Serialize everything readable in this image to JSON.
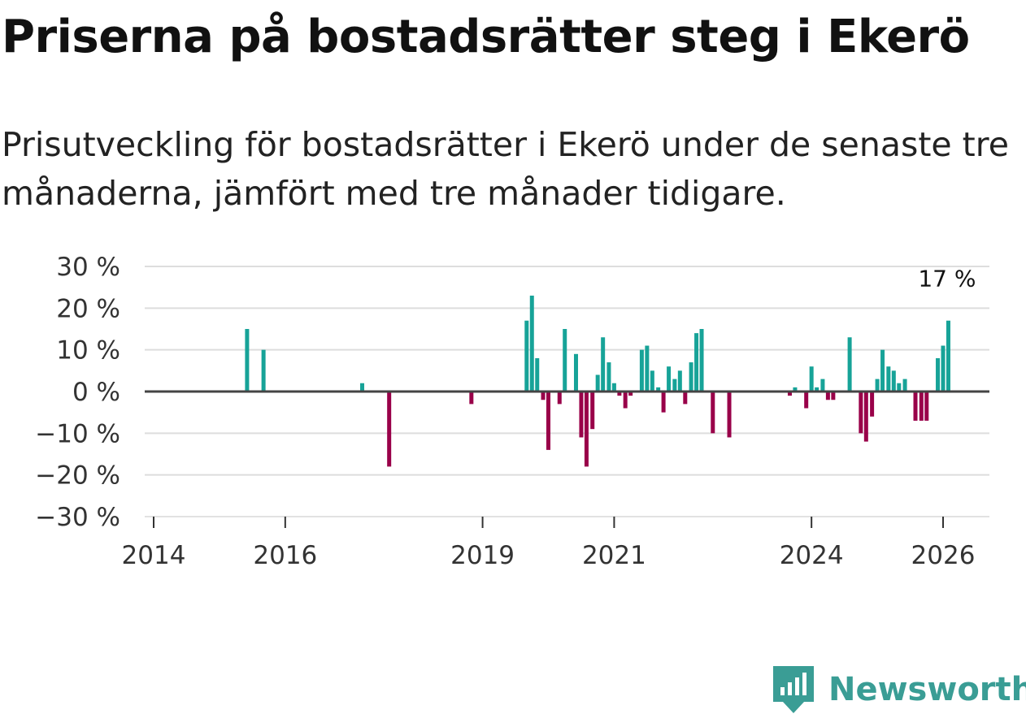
{
  "title": "Priserna på bostadsrätter steg i Ekerö",
  "subtitle": "Prisutveckling för bostadsrätter i Ekerö under de senaste tre månaderna, jämfört med tre månader tidigare.",
  "brand": "Newsworthy",
  "colors": {
    "positive": "#17a398",
    "negative": "#990049",
    "brand": "#3a9d95"
  },
  "chart_data": {
    "type": "bar",
    "title": "Priserna på bostadsrätter steg i Ekerö",
    "xlabel": "",
    "ylabel": "",
    "ylim": [
      -30,
      30
    ],
    "y_ticks": [
      30,
      20,
      10,
      0,
      -10,
      -20,
      -30
    ],
    "y_tick_labels": [
      "30 %",
      "20 %",
      "10 %",
      "0 %",
      "−10 %",
      "−20 %",
      "−30 %"
    ],
    "x_ticks": [
      2014,
      2016,
      2019,
      2021,
      2024,
      2026
    ],
    "x_tick_labels": [
      "2014",
      "2016",
      "2019",
      "2021",
      "2024",
      "2026"
    ],
    "x_range": [
      2014,
      2026.7
    ],
    "grid": true,
    "annotation": {
      "text": "17 %",
      "x": 2026.08,
      "y": 17
    },
    "series": [
      {
        "name": "Prisutveckling",
        "points": [
          {
            "x": 2015.42,
            "y": 15
          },
          {
            "x": 2015.67,
            "y": 10
          },
          {
            "x": 2017.17,
            "y": 2
          },
          {
            "x": 2017.58,
            "y": -18
          },
          {
            "x": 2018.83,
            "y": -3
          },
          {
            "x": 2019.67,
            "y": 17
          },
          {
            "x": 2019.75,
            "y": 23
          },
          {
            "x": 2019.83,
            "y": 8
          },
          {
            "x": 2019.92,
            "y": -2
          },
          {
            "x": 2020.0,
            "y": -14
          },
          {
            "x": 2020.17,
            "y": -3
          },
          {
            "x": 2020.25,
            "y": 15
          },
          {
            "x": 2020.42,
            "y": 9
          },
          {
            "x": 2020.5,
            "y": -11
          },
          {
            "x": 2020.58,
            "y": -18
          },
          {
            "x": 2020.67,
            "y": -9
          },
          {
            "x": 2020.75,
            "y": 4
          },
          {
            "x": 2020.83,
            "y": 13
          },
          {
            "x": 2020.92,
            "y": 7
          },
          {
            "x": 2021.0,
            "y": 2
          },
          {
            "x": 2021.08,
            "y": -1
          },
          {
            "x": 2021.17,
            "y": -4
          },
          {
            "x": 2021.25,
            "y": -1
          },
          {
            "x": 2021.42,
            "y": 10
          },
          {
            "x": 2021.5,
            "y": 11
          },
          {
            "x": 2021.58,
            "y": 5
          },
          {
            "x": 2021.67,
            "y": 1
          },
          {
            "x": 2021.75,
            "y": -5
          },
          {
            "x": 2021.83,
            "y": 6
          },
          {
            "x": 2021.92,
            "y": 3
          },
          {
            "x": 2022.0,
            "y": 5
          },
          {
            "x": 2022.08,
            "y": -3
          },
          {
            "x": 2022.17,
            "y": 7
          },
          {
            "x": 2022.25,
            "y": 14
          },
          {
            "x": 2022.33,
            "y": 15
          },
          {
            "x": 2022.5,
            "y": -10
          },
          {
            "x": 2022.75,
            "y": -11
          },
          {
            "x": 2023.67,
            "y": -1
          },
          {
            "x": 2023.75,
            "y": 1
          },
          {
            "x": 2023.92,
            "y": -4
          },
          {
            "x": 2024.0,
            "y": 6
          },
          {
            "x": 2024.08,
            "y": 1
          },
          {
            "x": 2024.17,
            "y": 3
          },
          {
            "x": 2024.25,
            "y": -2
          },
          {
            "x": 2024.33,
            "y": -2
          },
          {
            "x": 2024.58,
            "y": 13
          },
          {
            "x": 2024.75,
            "y": -10
          },
          {
            "x": 2024.83,
            "y": -12
          },
          {
            "x": 2024.92,
            "y": -6
          },
          {
            "x": 2025.0,
            "y": 3
          },
          {
            "x": 2025.08,
            "y": 10
          },
          {
            "x": 2025.17,
            "y": 6
          },
          {
            "x": 2025.25,
            "y": 5
          },
          {
            "x": 2025.33,
            "y": 2
          },
          {
            "x": 2025.42,
            "y": 3
          },
          {
            "x": 2025.58,
            "y": -7
          },
          {
            "x": 2025.67,
            "y": -7
          },
          {
            "x": 2025.75,
            "y": -7
          },
          {
            "x": 2025.92,
            "y": 8
          },
          {
            "x": 2026.0,
            "y": 11
          },
          {
            "x": 2026.08,
            "y": 17
          }
        ]
      }
    ]
  }
}
